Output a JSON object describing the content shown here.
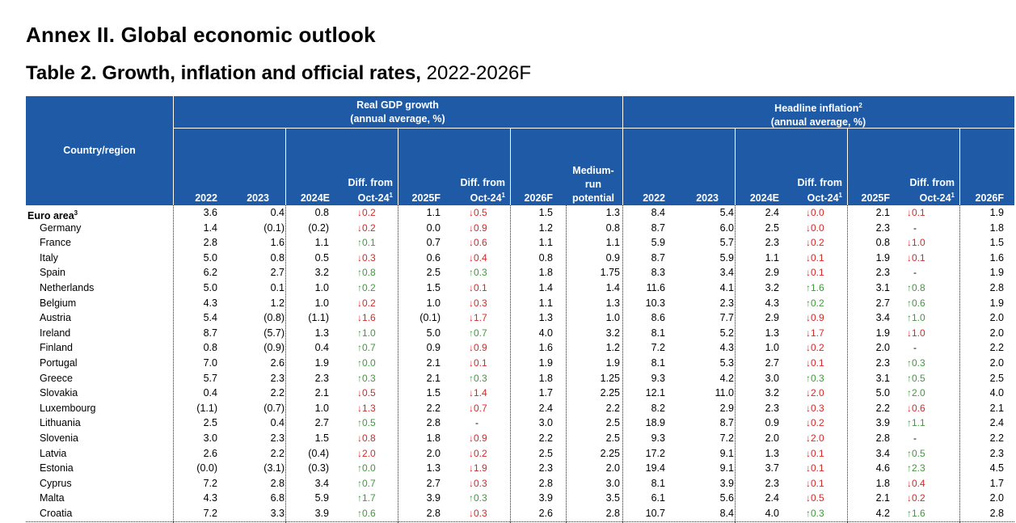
{
  "page_title": "Annex II. Global economic outlook",
  "table_title": "Table 2. Growth, inflation and official rates,",
  "table_title_suffix": " 2022-2026F",
  "header": {
    "country": "Country/region",
    "gdp_line1": "Real GDP growth",
    "gdp_line2": "(annual average, %)",
    "infl_line1": "Headline inflation",
    "infl_sup": "2",
    "infl_line2": "(annual average, %)",
    "y2022": "2022",
    "y2023": "2023",
    "y2024": "2024E",
    "diff_line1": "Diff. from",
    "diff_line2": "Oct-24",
    "diff_sup": "1",
    "y2025": "2025F",
    "y2026": "2026F",
    "med_line1": "Medium-",
    "med_line2": "run",
    "med_line3": "potential"
  },
  "rows": [
    {
      "name": "Euro area",
      "sup": "3",
      "bold": true,
      "g22": "3.6",
      "g23": "0.4",
      "g24": "0.8",
      "gd1": "↓0.2",
      "gd1c": "down",
      "g25": "1.1",
      "gd2": "↓0.5",
      "gd2c": "down",
      "g26": "1.5",
      "med": "1.3",
      "i22": "8.4",
      "i23": "5.4",
      "i24": "2.4",
      "id1": "↓0.0",
      "id1c": "down",
      "i25": "2.1",
      "id2": "↓0.1",
      "id2c": "down",
      "i26": "1.9"
    },
    {
      "name": "Germany",
      "g22": "1.4",
      "g23": "(0.1)",
      "g24": "(0.2)",
      "gd1": "↓0.2",
      "gd1c": "down",
      "g25": "0.0",
      "gd2": "↓0.9",
      "gd2c": "down",
      "g26": "1.2",
      "med": "0.8",
      "i22": "8.7",
      "i23": "6.0",
      "i24": "2.5",
      "id1": "↓0.0",
      "id1c": "down",
      "i25": "2.3",
      "id2": "-",
      "id2c": "flat",
      "i26": "1.8"
    },
    {
      "name": "France",
      "g22": "2.8",
      "g23": "1.6",
      "g24": "1.1",
      "gd1": "↑0.1",
      "gd1c": "up",
      "g25": "0.7",
      "gd2": "↓0.6",
      "gd2c": "down",
      "g26": "1.1",
      "med": "1.1",
      "i22": "5.9",
      "i23": "5.7",
      "i24": "2.3",
      "id1": "↓0.2",
      "id1c": "down",
      "i25": "0.8",
      "id2": "↓1.0",
      "id2c": "down",
      "i26": "1.5"
    },
    {
      "name": "Italy",
      "g22": "5.0",
      "g23": "0.8",
      "g24": "0.5",
      "gd1": "↓0.3",
      "gd1c": "down",
      "g25": "0.6",
      "gd2": "↓0.4",
      "gd2c": "down",
      "g26": "0.8",
      "med": "0.9",
      "i22": "8.7",
      "i23": "5.9",
      "i24": "1.1",
      "id1": "↓0.1",
      "id1c": "down",
      "i25": "1.9",
      "id2": "↓0.1",
      "id2c": "down",
      "i26": "1.6"
    },
    {
      "name": "Spain",
      "g22": "6.2",
      "g23": "2.7",
      "g24": "3.2",
      "gd1": "↑0.8",
      "gd1c": "up",
      "g25": "2.5",
      "gd2": "↑0.3",
      "gd2c": "up",
      "g26": "1.8",
      "med": "1.75",
      "i22": "8.3",
      "i23": "3.4",
      "i24": "2.9",
      "id1": "↓0.1",
      "id1c": "down",
      "i25": "2.3",
      "id2": "-",
      "id2c": "flat",
      "i26": "1.9"
    },
    {
      "name": "Netherlands",
      "g22": "5.0",
      "g23": "0.1",
      "g24": "1.0",
      "gd1": "↑0.2",
      "gd1c": "up",
      "g25": "1.5",
      "gd2": "↓0.1",
      "gd2c": "down",
      "g26": "1.4",
      "med": "1.4",
      "i22": "11.6",
      "i23": "4.1",
      "i24": "3.2",
      "id1": "↑1.6",
      "id1c": "up",
      "i25": "3.1",
      "id2": "↑0.8",
      "id2c": "up",
      "i26": "2.8"
    },
    {
      "name": "Belgium",
      "g22": "4.3",
      "g23": "1.2",
      "g24": "1.0",
      "gd1": "↓0.2",
      "gd1c": "down",
      "g25": "1.0",
      "gd2": "↓0.3",
      "gd2c": "down",
      "g26": "1.1",
      "med": "1.3",
      "i22": "10.3",
      "i23": "2.3",
      "i24": "4.3",
      "id1": "↑0.2",
      "id1c": "up",
      "i25": "2.7",
      "id2": "↑0.6",
      "id2c": "up",
      "i26": "1.9"
    },
    {
      "name": "Austria",
      "g22": "5.4",
      "g23": "(0.8)",
      "g24": "(1.1)",
      "gd1": "↓1.6",
      "gd1c": "down",
      "g25": "(0.1)",
      "gd2": "↓1.7",
      "gd2c": "down",
      "g26": "1.3",
      "med": "1.0",
      "i22": "8.6",
      "i23": "7.7",
      "i24": "2.9",
      "id1": "↓0.9",
      "id1c": "down",
      "i25": "3.4",
      "id2": "↑1.0",
      "id2c": "up",
      "i26": "2.0"
    },
    {
      "name": "Ireland",
      "g22": "8.7",
      "g23": "(5.7)",
      "g24": "1.3",
      "gd1": "↑1.0",
      "gd1c": "up",
      "g25": "5.0",
      "gd2": "↑0.7",
      "gd2c": "up",
      "g26": "4.0",
      "med": "3.2",
      "i22": "8.1",
      "i23": "5.2",
      "i24": "1.3",
      "id1": "↓1.7",
      "id1c": "down",
      "i25": "1.9",
      "id2": "↓1.0",
      "id2c": "down",
      "i26": "2.0"
    },
    {
      "name": "Finland",
      "g22": "0.8",
      "g23": "(0.9)",
      "g24": "0.4",
      "gd1": "↑0.7",
      "gd1c": "up",
      "g25": "0.9",
      "gd2": "↓0.9",
      "gd2c": "down",
      "g26": "1.6",
      "med": "1.2",
      "i22": "7.2",
      "i23": "4.3",
      "i24": "1.0",
      "id1": "↓0.2",
      "id1c": "down",
      "i25": "2.0",
      "id2": "-",
      "id2c": "flat",
      "i26": "2.2"
    },
    {
      "name": "Portugal",
      "g22": "7.0",
      "g23": "2.6",
      "g24": "1.9",
      "gd1": "↑0.0",
      "gd1c": "up",
      "g25": "2.1",
      "gd2": "↓0.1",
      "gd2c": "down",
      "g26": "1.9",
      "med": "1.9",
      "i22": "8.1",
      "i23": "5.3",
      "i24": "2.7",
      "id1": "↓0.1",
      "id1c": "down",
      "i25": "2.3",
      "id2": "↑0.3",
      "id2c": "up",
      "i26": "2.0"
    },
    {
      "name": "Greece",
      "g22": "5.7",
      "g23": "2.3",
      "g24": "2.3",
      "gd1": "↑0.3",
      "gd1c": "up",
      "g25": "2.1",
      "gd2": "↑0.3",
      "gd2c": "up",
      "g26": "1.8",
      "med": "1.25",
      "i22": "9.3",
      "i23": "4.2",
      "i24": "3.0",
      "id1": "↑0.3",
      "id1c": "up",
      "i25": "3.1",
      "id2": "↑0.5",
      "id2c": "up",
      "i26": "2.5"
    },
    {
      "name": "Slovakia",
      "g22": "0.4",
      "g23": "2.2",
      "g24": "2.1",
      "gd1": "↓0.5",
      "gd1c": "down",
      "g25": "1.5",
      "gd2": "↓1.4",
      "gd2c": "down",
      "g26": "1.7",
      "med": "2.25",
      "i22": "12.1",
      "i23": "11.0",
      "i24": "3.2",
      "id1": "↓2.0",
      "id1c": "down",
      "i25": "5.0",
      "id2": "↑2.0",
      "id2c": "up",
      "i26": "4.0"
    },
    {
      "name": "Luxembourg",
      "g22": "(1.1)",
      "g23": "(0.7)",
      "g24": "1.0",
      "gd1": "↓1.3",
      "gd1c": "down",
      "g25": "2.2",
      "gd2": "↓0.7",
      "gd2c": "down",
      "g26": "2.4",
      "med": "2.2",
      "i22": "8.2",
      "i23": "2.9",
      "i24": "2.3",
      "id1": "↓0.3",
      "id1c": "down",
      "i25": "2.2",
      "id2": "↓0.6",
      "id2c": "down",
      "i26": "2.1"
    },
    {
      "name": "Lithuania",
      "g22": "2.5",
      "g23": "0.4",
      "g24": "2.7",
      "gd1": "↑0.5",
      "gd1c": "up",
      "g25": "2.8",
      "gd2": "-",
      "gd2c": "flat",
      "g26": "3.0",
      "med": "2.5",
      "i22": "18.9",
      "i23": "8.7",
      "i24": "0.9",
      "id1": "↓0.2",
      "id1c": "down",
      "i25": "3.9",
      "id2": "↑1.1",
      "id2c": "up",
      "i26": "2.4"
    },
    {
      "name": "Slovenia",
      "g22": "3.0",
      "g23": "2.3",
      "g24": "1.5",
      "gd1": "↓0.8",
      "gd1c": "down",
      "g25": "1.8",
      "gd2": "↓0.9",
      "gd2c": "down",
      "g26": "2.2",
      "med": "2.5",
      "i22": "9.3",
      "i23": "7.2",
      "i24": "2.0",
      "id1": "↓2.0",
      "id1c": "down",
      "i25": "2.8",
      "id2": "-",
      "id2c": "flat",
      "i26": "2.2"
    },
    {
      "name": "Latvia",
      "g22": "2.6",
      "g23": "2.2",
      "g24": "(0.4)",
      "gd1": "↓2.0",
      "gd1c": "down",
      "g25": "2.0",
      "gd2": "↓0.2",
      "gd2c": "down",
      "g26": "2.5",
      "med": "2.25",
      "i22": "17.2",
      "i23": "9.1",
      "i24": "1.3",
      "id1": "↓0.1",
      "id1c": "down",
      "i25": "3.4",
      "id2": "↑0.5",
      "id2c": "up",
      "i26": "2.3"
    },
    {
      "name": "Estonia",
      "g22": "(0.0)",
      "g23": "(3.1)",
      "g24": "(0.3)",
      "gd1": "↑0.0",
      "gd1c": "up",
      "g25": "1.3",
      "gd2": "↓1.9",
      "gd2c": "down",
      "g26": "2.3",
      "med": "2.0",
      "i22": "19.4",
      "i23": "9.1",
      "i24": "3.7",
      "id1": "↓0.1",
      "id1c": "down",
      "i25": "4.6",
      "id2": "↑2.3",
      "id2c": "up",
      "i26": "4.5"
    },
    {
      "name": "Cyprus",
      "g22": "7.2",
      "g23": "2.8",
      "g24": "3.4",
      "gd1": "↑0.7",
      "gd1c": "up",
      "g25": "2.7",
      "gd2": "↓0.3",
      "gd2c": "down",
      "g26": "2.8",
      "med": "3.0",
      "i22": "8.1",
      "i23": "3.9",
      "i24": "2.3",
      "id1": "↓0.1",
      "id1c": "down",
      "i25": "1.8",
      "id2": "↓0.4",
      "id2c": "down",
      "i26": "1.7"
    },
    {
      "name": "Malta",
      "g22": "4.3",
      "g23": "6.8",
      "g24": "5.9",
      "gd1": "↑1.7",
      "gd1c": "up",
      "g25": "3.9",
      "gd2": "↑0.3",
      "gd2c": "up",
      "g26": "3.9",
      "med": "3.5",
      "i22": "6.1",
      "i23": "5.6",
      "i24": "2.4",
      "id1": "↓0.5",
      "id1c": "down",
      "i25": "2.1",
      "id2": "↓0.2",
      "id2c": "down",
      "i26": "2.0"
    },
    {
      "name": "Croatia",
      "g22": "7.2",
      "g23": "3.3",
      "g24": "3.9",
      "gd1": "↑0.6",
      "gd1c": "up",
      "g25": "2.8",
      "gd2": "↓0.3",
      "gd2c": "down",
      "g26": "2.6",
      "med": "2.8",
      "i22": "10.7",
      "i23": "8.4",
      "i24": "4.0",
      "id1": "↑0.3",
      "id1c": "up",
      "i25": "4.2",
      "id2": "↑1.6",
      "id2c": "up",
      "i26": "2.8"
    }
  ]
}
